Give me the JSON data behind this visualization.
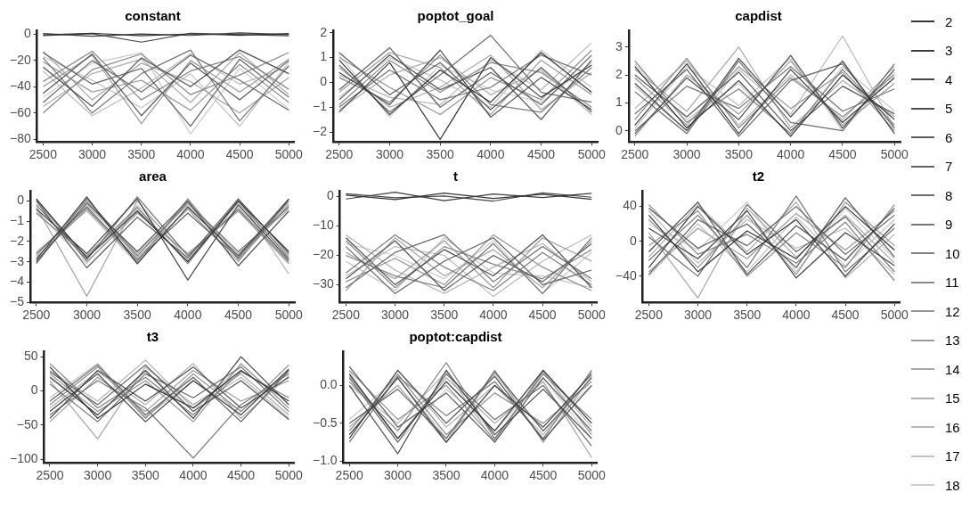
{
  "chart_data": [
    {
      "type": "line",
      "title": "constant",
      "x": [
        2500,
        3000,
        3500,
        4000,
        4500,
        5000
      ],
      "xlim": [
        2440,
        5060
      ],
      "xticks": [
        2500,
        3000,
        3500,
        4000,
        4500,
        5000
      ],
      "ylim": [
        -82,
        3
      ],
      "yticks": [
        -80,
        -60,
        -40,
        -20,
        0
      ],
      "grid": false,
      "marker": "none",
      "legend": "right",
      "series": [
        {
          "name": "2",
          "color": "#333333",
          "values": [
            -0.5,
            0.8,
            -1.2,
            0.3,
            -0.8,
            0.5
          ]
        },
        {
          "name": "3",
          "color": "#3c3c3c",
          "values": [
            0.6,
            -1.5,
            0.2,
            -0.9,
            1.0,
            -0.3
          ]
        },
        {
          "name": "4",
          "color": "#464646",
          "values": [
            -1.0,
            0.4,
            -6,
            0.7,
            -0.2,
            -1.1
          ]
        },
        {
          "name": "5",
          "color": "#4f4f4f",
          "values": [
            -25,
            -55,
            -18,
            -40,
            -12,
            -30
          ]
        },
        {
          "name": "6",
          "color": "#595959",
          "values": [
            -45,
            -15,
            -62,
            -22,
            -50,
            -20
          ]
        },
        {
          "name": "7",
          "color": "#626262",
          "values": [
            -14,
            -38,
            -26,
            -70,
            -19,
            -48
          ]
        },
        {
          "name": "8",
          "color": "#6c6c6c",
          "values": [
            -52,
            -20,
            -44,
            -16,
            -35,
            -58
          ]
        },
        {
          "name": "9",
          "color": "#757575",
          "values": [
            -18,
            -60,
            -30,
            -12,
            -66,
            -24
          ]
        },
        {
          "name": "10",
          "color": "#7f7f7f",
          "values": [
            -36,
            -13,
            -50,
            -28,
            -17,
            -42
          ]
        },
        {
          "name": "11",
          "color": "#888888",
          "values": [
            -60,
            -27,
            -15,
            -46,
            -31,
            -14
          ]
        },
        {
          "name": "12",
          "color": "#929292",
          "values": [
            -21,
            -44,
            -35,
            -58,
            -23,
            -52
          ]
        },
        {
          "name": "13",
          "color": "#9b9b9b",
          "values": [
            -40,
            -16,
            -68,
            -20,
            -44,
            -19
          ]
        },
        {
          "name": "14",
          "color": "#a5a5a5",
          "values": [
            -13,
            -50,
            -22,
            -36,
            -60,
            -33
          ]
        },
        {
          "name": "15",
          "color": "#aeaeae",
          "values": [
            -55,
            -30,
            -19,
            -52,
            -14,
            -46
          ]
        },
        {
          "name": "16",
          "color": "#b8b8b8",
          "values": [
            -28,
            -62,
            -41,
            -15,
            -38,
            -25
          ]
        },
        {
          "name": "17",
          "color": "#c1c1c1",
          "values": [
            -17,
            -35,
            -56,
            -30,
            -70,
            -21
          ]
        },
        {
          "name": "18",
          "color": "#cbcbcb",
          "values": [
            -48,
            -22,
            -14,
            -76,
            -26,
            -57
          ]
        }
      ]
    },
    {
      "type": "line",
      "title": "poptot_goal",
      "x": [
        2500,
        3000,
        3500,
        4000,
        4500,
        5000
      ],
      "xlim": [
        2440,
        5060
      ],
      "xticks": [
        2500,
        3000,
        3500,
        4000,
        4500,
        5000
      ],
      "ylim": [
        -2.4,
        2.1
      ],
      "yticks": [
        -2,
        -1,
        0,
        1,
        2
      ],
      "grid": false,
      "marker": "none",
      "series": [
        {
          "color": "#333333",
          "values": [
            0.9,
            -1.3,
            0.5,
            -0.8,
            1.2,
            -0.4
          ]
        },
        {
          "color": "#3c3c3c",
          "values": [
            -1.2,
            0.8,
            -2.3,
            1.0,
            -0.6,
            0.7
          ]
        },
        {
          "color": "#464646",
          "values": [
            0.4,
            -0.9,
            1.3,
            -1.4,
            0.2,
            -1.1
          ]
        },
        {
          "color": "#4f4f4f",
          "values": [
            -0.7,
            1.1,
            -0.3,
            0.6,
            -1.5,
            0.9
          ]
        },
        {
          "color": "#595959",
          "values": [
            1.2,
            -0.5,
            0.8,
            -1.1,
            0.6,
            -1.2
          ]
        },
        {
          "color": "#626262",
          "values": [
            -0.3,
            1.4,
            -1.0,
            0.4,
            -0.9,
            1.1
          ]
        },
        {
          "color": "#6c6c6c",
          "values": [
            0.7,
            -1.2,
            0.3,
            1.9,
            -0.4,
            -0.8
          ]
        },
        {
          "color": "#757575",
          "values": [
            -1.0,
            0.5,
            -0.7,
            -0.2,
            1.1,
            0.3
          ]
        },
        {
          "color": "#7f7f7f",
          "values": [
            0.2,
            -0.8,
            1.1,
            -0.9,
            -1.2,
            0.6
          ]
        },
        {
          "color": "#888888",
          "values": [
            -0.9,
            0.9,
            -0.4,
            0.8,
            0.4,
            -1.0
          ]
        },
        {
          "color": "#929292",
          "values": [
            1.0,
            -0.2,
            -1.3,
            0.2,
            -0.7,
            1.3
          ]
        },
        {
          "color": "#9b9b9b",
          "values": [
            -0.4,
            1.2,
            0.6,
            -1.3,
            0.9,
            -0.5
          ]
        },
        {
          "color": "#a5a5a5",
          "values": [
            0.6,
            -1.0,
            -0.2,
            1.1,
            -1.1,
            0.4
          ]
        },
        {
          "color": "#aeaeae",
          "values": [
            -1.1,
            0.3,
            1.0,
            -0.5,
            0.5,
            -1.3
          ]
        },
        {
          "color": "#b8b8b8",
          "values": [
            0.3,
            -0.6,
            -0.9,
            0.9,
            -0.3,
            1.6
          ]
        },
        {
          "color": "#c1c1c1",
          "values": [
            -0.6,
            1.0,
            0.1,
            -1.0,
            1.3,
            -0.2
          ]
        },
        {
          "color": "#cbcbcb",
          "values": [
            1.1,
            -1.4,
            0.7,
            -0.3,
            -0.8,
            0.8
          ]
        }
      ]
    },
    {
      "type": "line",
      "title": "capdist",
      "x": [
        2500,
        3000,
        3500,
        4000,
        4500,
        5000
      ],
      "xlim": [
        2440,
        5060
      ],
      "xticks": [
        2500,
        3000,
        3500,
        4000,
        4500,
        5000
      ],
      "ylim": [
        -0.4,
        3.6
      ],
      "yticks": [
        0,
        1,
        2,
        3
      ],
      "grid": false,
      "marker": "none",
      "series": [
        {
          "color": "#333333",
          "values": [
            2.3,
            0.1,
            1.8,
            -0.2,
            2.0,
            0.4
          ]
        },
        {
          "color": "#3c3c3c",
          "values": [
            0.2,
            2.4,
            -0.1,
            2.2,
            0.3,
            1.9
          ]
        },
        {
          "color": "#464646",
          "values": [
            1.7,
            0.0,
            2.6,
            0.5,
            2.5,
            -0.1
          ]
        },
        {
          "color": "#4f4f4f",
          "values": [
            -0.1,
            1.9,
            0.4,
            2.7,
            0.1,
            2.2
          ]
        },
        {
          "color": "#595959",
          "values": [
            2.0,
            0.5,
            2.1,
            0.0,
            1.6,
            0.6
          ]
        },
        {
          "color": "#626262",
          "values": [
            0.6,
            2.2,
            -0.2,
            1.8,
            2.4,
            0.1
          ]
        },
        {
          "color": "#6c6c6c",
          "values": [
            1.4,
            -0.1,
            2.5,
            0.3,
            0.0,
            2.4
          ]
        },
        {
          "color": "#757575",
          "values": [
            0.0,
            1.6,
            0.8,
            2.3,
            0.7,
            1.5
          ]
        },
        {
          "color": "#7f7f7f",
          "values": [
            2.5,
            0.3,
            1.5,
            -0.1,
            2.2,
            0.2
          ]
        },
        {
          "color": "#888888",
          "values": [
            0.4,
            2.6,
            0.1,
            1.9,
            0.5,
            2.0
          ]
        },
        {
          "color": "#929292",
          "values": [
            1.9,
            0.2,
            2.3,
            0.8,
            2.1,
            0.0
          ]
        },
        {
          "color": "#9b9b9b",
          "values": [
            -0.2,
            2.0,
            0.6,
            2.5,
            0.2,
            1.7
          ]
        },
        {
          "color": "#a5a5a5",
          "values": [
            2.2,
            0.7,
            3.0,
            0.1,
            1.8,
            0.5
          ]
        },
        {
          "color": "#aeaeae",
          "values": [
            0.8,
            2.5,
            0.2,
            2.0,
            0.4,
            2.3
          ]
        },
        {
          "color": "#b8b8b8",
          "values": [
            1.6,
            0.0,
            2.2,
            0.6,
            3.4,
            0.1
          ]
        },
        {
          "color": "#c1c1c1",
          "values": [
            0.1,
            2.3,
            0.9,
            2.6,
            0.0,
            2.1
          ]
        },
        {
          "color": "#cbcbcb",
          "values": [
            2.4,
            0.4,
            1.7,
            -0.2,
            2.3,
            0.7
          ]
        }
      ]
    },
    {
      "type": "line",
      "title": "area",
      "x": [
        2500,
        3000,
        3500,
        4000,
        4500,
        5000
      ],
      "xlim": [
        2440,
        5060
      ],
      "xticks": [
        2500,
        3000,
        3500,
        4000,
        4500,
        5000
      ],
      "ylim": [
        -5,
        0.5
      ],
      "yticks": [
        -5,
        -4,
        -3,
        -2,
        -1,
        0
      ],
      "grid": false,
      "marker": "none",
      "series": [
        {
          "color": "#333333",
          "values": [
            0.1,
            -2.8,
            -0.5,
            -3.0,
            0.0,
            -2.5
          ]
        },
        {
          "color": "#3c3c3c",
          "values": [
            -2.9,
            0.2,
            -3.1,
            -0.3,
            -2.7,
            0.1
          ]
        },
        {
          "color": "#464646",
          "values": [
            -0.4,
            -2.6,
            0.1,
            -3.9,
            -0.2,
            -2.9
          ]
        },
        {
          "color": "#4f4f4f",
          "values": [
            -3.0,
            -0.1,
            -2.5,
            0.0,
            -3.2,
            -0.5
          ]
        },
        {
          "color": "#595959",
          "values": [
            0.0,
            -3.3,
            -0.8,
            -2.8,
            0.1,
            -2.6
          ]
        },
        {
          "color": "#626262",
          "values": [
            -2.6,
            -0.3,
            -2.9,
            -0.6,
            -2.8,
            0.0
          ]
        },
        {
          "color": "#6c6c6c",
          "values": [
            -0.2,
            -2.9,
            0.2,
            -2.7,
            -0.4,
            -3.0
          ]
        },
        {
          "color": "#757575",
          "values": [
            -3.1,
            0.1,
            -2.7,
            -0.1,
            -2.5,
            -0.3
          ]
        },
        {
          "color": "#7f7f7f",
          "values": [
            -0.6,
            -2.7,
            -0.3,
            -3.1,
            0.0,
            -2.8
          ]
        },
        {
          "color": "#888888",
          "values": [
            -2.8,
            -0.4,
            -3.0,
            0.1,
            -2.9,
            -0.2
          ]
        },
        {
          "color": "#929292",
          "values": [
            0.1,
            -3.0,
            -0.6,
            -2.6,
            -0.5,
            -3.1
          ]
        },
        {
          "color": "#9b9b9b",
          "values": [
            -2.7,
            0.0,
            -2.8,
            -0.4,
            -3.0,
            0.1
          ]
        },
        {
          "color": "#a5a5a5",
          "values": [
            -0.3,
            -4.7,
            0.0,
            -2.9,
            -0.1,
            -2.7
          ]
        },
        {
          "color": "#aeaeae",
          "values": [
            -3.0,
            -0.2,
            -2.6,
            -0.2,
            -2.6,
            -0.4
          ]
        },
        {
          "color": "#b8b8b8",
          "values": [
            0.0,
            -2.8,
            -0.4,
            -3.0,
            0.1,
            -3.6
          ]
        },
        {
          "color": "#c1c1c1",
          "values": [
            -2.5,
            -0.5,
            -3.1,
            0.0,
            -2.8,
            -0.1
          ]
        },
        {
          "color": "#cbcbcb",
          "values": [
            -0.5,
            -3.1,
            -0.2,
            -2.7,
            -0.3,
            -2.9
          ]
        }
      ]
    },
    {
      "type": "line",
      "title": "t",
      "x": [
        2500,
        3000,
        3500,
        4000,
        4500,
        5000
      ],
      "xlim": [
        2440,
        5060
      ],
      "xticks": [
        2500,
        3000,
        3500,
        4000,
        4500,
        5000
      ],
      "ylim": [
        -36,
        2
      ],
      "yticks": [
        -30,
        -20,
        -10,
        0
      ],
      "grid": false,
      "marker": "none",
      "series": [
        {
          "color": "#333333",
          "values": [
            0.5,
            -1.0,
            1.2,
            -0.6,
            0.8,
            -0.9
          ]
        },
        {
          "color": "#3c3c3c",
          "values": [
            -0.8,
            1.5,
            -1.4,
            0.9,
            -0.3,
            1.1
          ]
        },
        {
          "color": "#464646",
          "values": [
            1.0,
            -0.4,
            0.2,
            -1.5,
            1.3,
            -0.2
          ]
        },
        {
          "color": "#4f4f4f",
          "values": [
            -14,
            -30,
            -18,
            -27,
            -13,
            -31
          ]
        },
        {
          "color": "#595959",
          "values": [
            -28,
            -15,
            -32,
            -20,
            -29,
            -16
          ]
        },
        {
          "color": "#626262",
          "values": [
            -17,
            -33,
            -22,
            -14,
            -30,
            -25
          ]
        },
        {
          "color": "#6c6c6c",
          "values": [
            -31,
            -19,
            -13,
            -29,
            -17,
            -28
          ]
        },
        {
          "color": "#757575",
          "values": [
            -20,
            -27,
            -31,
            -16,
            -33,
            -14
          ]
        },
        {
          "color": "#7f7f7f",
          "values": [
            -26,
            -13,
            -24,
            -32,
            -19,
            -30
          ]
        },
        {
          "color": "#888888",
          "values": [
            -15,
            -31,
            -17,
            -23,
            -28,
            -18
          ]
        },
        {
          "color": "#929292",
          "values": [
            -29,
            -21,
            -30,
            -13,
            -24,
            -32
          ]
        },
        {
          "color": "#9b9b9b",
          "values": [
            -19,
            -28,
            -15,
            -31,
            -14,
            -22
          ]
        },
        {
          "color": "#a5a5a5",
          "values": [
            -32,
            -14,
            -27,
            -18,
            -31,
            -15
          ]
        },
        {
          "color": "#aeaeae",
          "values": [
            -13,
            -25,
            -33,
            -24,
            -16,
            -29
          ]
        },
        {
          "color": "#b8b8b8",
          "values": [
            -27,
            -17,
            -20,
            -34,
            -22,
            -13
          ]
        },
        {
          "color": "#c1c1c1",
          "values": [
            -22,
            -32,
            -14,
            -26,
            -27,
            -31
          ]
        },
        {
          "color": "#cbcbcb",
          "values": [
            -16,
            -20,
            -28,
            -15,
            -33,
            -19
          ]
        }
      ]
    },
    {
      "type": "line",
      "title": "t2",
      "x": [
        2500,
        3000,
        3500,
        4000,
        4500,
        5000
      ],
      "xlim": [
        2440,
        5060
      ],
      "xticks": [
        2500,
        3000,
        3500,
        4000,
        4500,
        5000
      ],
      "ylim": [
        -70,
        58
      ],
      "yticks": [
        -40,
        0,
        40
      ],
      "grid": false,
      "marker": "none",
      "series": [
        {
          "color": "#333333",
          "values": [
            30,
            -35,
            12,
            -20,
            40,
            -10
          ]
        },
        {
          "color": "#3c3c3c",
          "values": [
            -30,
            40,
            -15,
            25,
            -40,
            20
          ]
        },
        {
          "color": "#464646",
          "values": [
            15,
            -20,
            35,
            -42,
            10,
            -28
          ]
        },
        {
          "color": "#4f4f4f",
          "values": [
            -12,
            45,
            -38,
            18,
            -22,
            38
          ]
        },
        {
          "color": "#595959",
          "values": [
            38,
            -8,
            20,
            -30,
            50,
            -18
          ]
        },
        {
          "color": "#626262",
          "values": [
            -38,
            25,
            -5,
            40,
            -15,
            30
          ]
        },
        {
          "color": "#6c6c6c",
          "values": [
            5,
            -40,
            42,
            -12,
            28,
            -35
          ]
        },
        {
          "color": "#757575",
          "values": [
            -22,
            30,
            -30,
            52,
            -35,
            15
          ]
        },
        {
          "color": "#7f7f7f",
          "values": [
            42,
            -15,
            8,
            -25,
            22,
            -45
          ]
        },
        {
          "color": "#888888",
          "values": [
            -5,
            35,
            -40,
            10,
            -30,
            42
          ]
        },
        {
          "color": "#929292",
          "values": [
            25,
            -30,
            30,
            -38,
            45,
            -5
          ]
        },
        {
          "color": "#9b9b9b",
          "values": [
            -35,
            15,
            -20,
            32,
            -10,
            35
          ]
        },
        {
          "color": "#a5a5a5",
          "values": [
            10,
            -65,
            38,
            -18,
            30,
            -25
          ]
        },
        {
          "color": "#aeaeae",
          "values": [
            -18,
            42,
            -12,
            45,
            -42,
            8
          ]
        },
        {
          "color": "#b8b8b8",
          "values": [
            35,
            -25,
            25,
            -8,
            15,
            -38
          ]
        },
        {
          "color": "#c1c1c1",
          "values": [
            -40,
            20,
            -35,
            28,
            -28,
            25
          ]
        },
        {
          "color": "#cbcbcb",
          "values": [
            20,
            -10,
            45,
            -35,
            38,
            -20
          ]
        }
      ]
    },
    {
      "type": "line",
      "title": "t3",
      "x": [
        2500,
        3000,
        3500,
        4000,
        4500,
        5000
      ],
      "xlim": [
        2440,
        5060
      ],
      "xticks": [
        2500,
        3000,
        3500,
        4000,
        4500,
        5000
      ],
      "ylim": [
        -105,
        58
      ],
      "yticks": [
        -100,
        -50,
        0,
        50
      ],
      "grid": false,
      "marker": "none",
      "series": [
        {
          "color": "#333333",
          "values": [
            35,
            -40,
            10,
            -25,
            30,
            -15
          ]
        },
        {
          "color": "#3c3c3c",
          "values": [
            -30,
            25,
            -45,
            15,
            -35,
            32
          ]
        },
        {
          "color": "#464646",
          "values": [
            20,
            -35,
            30,
            -40,
            50,
            -20
          ]
        },
        {
          "color": "#4f4f4f",
          "values": [
            -40,
            30,
            -15,
            35,
            -25,
            20
          ]
        },
        {
          "color": "#595959",
          "values": [
            28,
            -20,
            38,
            -30,
            15,
            -42
          ]
        },
        {
          "color": "#626262",
          "values": [
            -15,
            38,
            -35,
            20,
            -45,
            30
          ]
        },
        {
          "color": "#6c6c6c",
          "values": [
            10,
            -45,
            25,
            -10,
            35,
            -30
          ]
        },
        {
          "color": "#757575",
          "values": [
            -35,
            15,
            -25,
            -98,
            -20,
            25
          ]
        },
        {
          "color": "#7f7f7f",
          "values": [
            40,
            -25,
            20,
            -35,
            28,
            -10
          ]
        },
        {
          "color": "#888888",
          "values": [
            -20,
            35,
            -40,
            25,
            -30,
            38
          ]
        },
        {
          "color": "#929292",
          "values": [
            25,
            -30,
            15,
            -45,
            40,
            -25
          ]
        },
        {
          "color": "#9b9b9b",
          "values": [
            -45,
            20,
            -30,
            30,
            -15,
            15
          ]
        },
        {
          "color": "#a5a5a5",
          "values": [
            15,
            -70,
            35,
            -20,
            25,
            -35
          ]
        },
        {
          "color": "#aeaeae",
          "values": [
            -25,
            28,
            -20,
            40,
            -40,
            22
          ]
        },
        {
          "color": "#b8b8b8",
          "values": [
            30,
            -15,
            45,
            -25,
            20,
            -40
          ]
        },
        {
          "color": "#c1c1c1",
          "values": [
            -10,
            40,
            -38,
            15,
            -30,
            28
          ]
        },
        {
          "color": "#cbcbcb",
          "values": [
            22,
            -35,
            28,
            -30,
            38,
            -20
          ]
        }
      ]
    },
    {
      "type": "line",
      "title": "poptot:capdist",
      "x": [
        2500,
        3000,
        3500,
        4000,
        4500,
        5000
      ],
      "xlim": [
        2440,
        5060
      ],
      "xticks": [
        2500,
        3000,
        3500,
        4000,
        4500,
        5000
      ],
      "ylim": [
        -1.02,
        0.45
      ],
      "yticks": [
        {
          "value": -1,
          "label": "−1.0"
        },
        -0.5,
        {
          "value": 0,
          "label": "0.0"
        }
      ],
      "grid": false,
      "marker": "none",
      "series": [
        {
          "color": "#333333",
          "values": [
            0.15,
            -0.7,
            0.05,
            -0.6,
            0.2,
            -0.5
          ]
        },
        {
          "color": "#3c3c3c",
          "values": [
            -0.65,
            0.1,
            -0.75,
            0.0,
            -0.55,
            0.15
          ]
        },
        {
          "color": "#464646",
          "values": [
            0.0,
            -0.9,
            0.2,
            -0.65,
            -0.05,
            -0.7
          ]
        },
        {
          "color": "#4f4f4f",
          "values": [
            -0.7,
            0.2,
            -0.5,
            0.12,
            -0.72,
            0.0
          ]
        },
        {
          "color": "#595959",
          "values": [
            0.25,
            -0.55,
            -0.1,
            -0.75,
            0.1,
            -0.6
          ]
        },
        {
          "color": "#626262",
          "values": [
            -0.5,
            -0.05,
            -0.7,
            0.18,
            -0.6,
            0.1
          ]
        },
        {
          "color": "#6c6c6c",
          "values": [
            0.1,
            -0.75,
            0.15,
            -0.45,
            0.0,
            -0.8
          ]
        },
        {
          "color": "#757575",
          "values": [
            -0.75,
            0.12,
            -0.4,
            0.05,
            -0.7,
            0.2
          ]
        },
        {
          "color": "#7f7f7f",
          "values": [
            0.05,
            -0.6,
            0.3,
            -0.7,
            0.15,
            -0.45
          ]
        },
        {
          "color": "#888888",
          "values": [
            -0.6,
            0.15,
            -0.65,
            -0.1,
            -0.5,
            0.05
          ]
        },
        {
          "color": "#929292",
          "values": [
            0.2,
            -0.45,
            0.0,
            -0.72,
            0.18,
            -0.65
          ]
        },
        {
          "color": "#9b9b9b",
          "values": [
            -0.55,
            0.0,
            -0.75,
            0.2,
            -0.75,
            0.12
          ]
        },
        {
          "color": "#a5a5a5",
          "values": [
            0.12,
            -0.7,
            0.1,
            -0.5,
            0.05,
            -0.95
          ]
        },
        {
          "color": "#aeaeae",
          "values": [
            -0.7,
            0.2,
            -0.55,
            0.0,
            -0.65,
            0.18
          ]
        },
        {
          "color": "#b8b8b8",
          "values": [
            0.0,
            -0.5,
            0.18,
            -0.75,
            0.2,
            -0.55
          ]
        },
        {
          "color": "#c1c1c1",
          "values": [
            -0.45,
            0.1,
            -0.7,
            0.15,
            -0.6,
            0.0
          ]
        },
        {
          "color": "#cbcbcb",
          "values": [
            0.18,
            -0.75,
            -0.05,
            -0.6,
            0.1,
            -0.7
          ]
        }
      ]
    }
  ]
}
